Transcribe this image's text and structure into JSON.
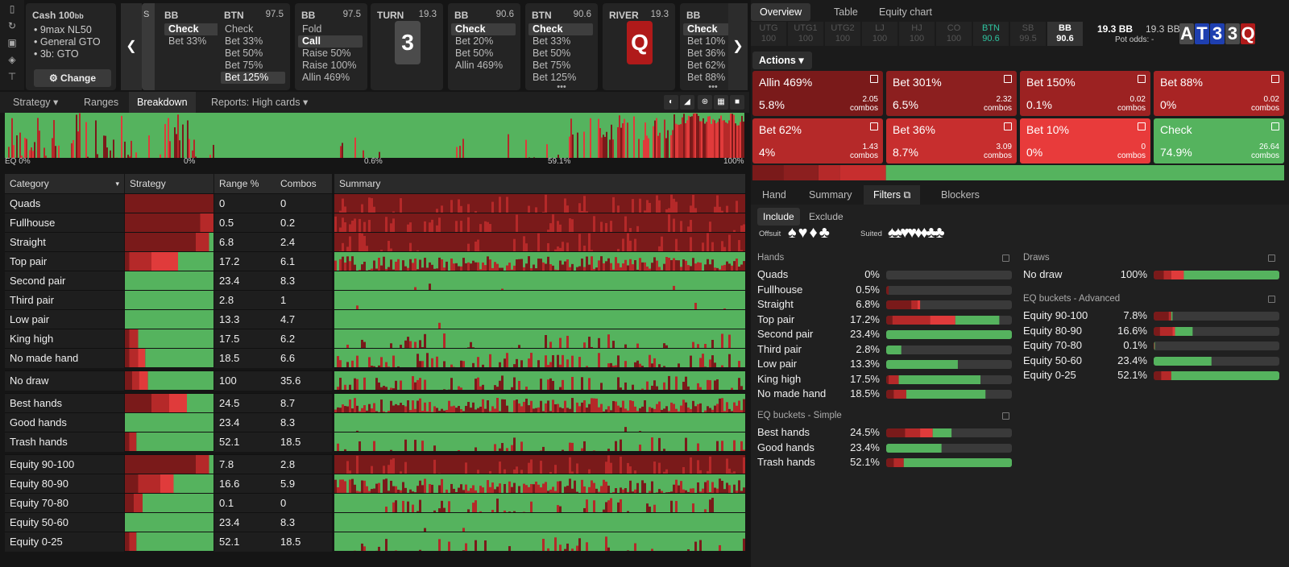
{
  "cash": {
    "title": "Cash",
    "stack": "100",
    "stack_unit": "bb",
    "line1": "9max NL50",
    "line2": "General GTO",
    "line3": "3b: GTO",
    "change": "Change"
  },
  "nav_cards": [
    {
      "pos": "BB",
      "stack": "97.5",
      "actions": [
        "Check",
        "Bet 33%"
      ],
      "sel": 0,
      "hl": -1,
      "more": false
    },
    {
      "pos": "BTN",
      "stack": "97.5",
      "actions": [
        "Check",
        "Bet 33%",
        "Bet 50%",
        "Bet 75%",
        "Bet 125%"
      ],
      "sel": -1,
      "hl": 4,
      "more": false
    },
    {
      "pos": "BB",
      "stack": "97.5",
      "actions": [
        "Fold",
        "Call",
        "Raise 50%",
        "Raise 100%",
        "Allin 469%"
      ],
      "sel": 1,
      "hl": -1,
      "more": false
    },
    {
      "pos": "BB",
      "stack": "90.6",
      "actions": [
        "Check",
        "Bet 20%",
        "Bet 50%",
        "Allin 469%"
      ],
      "sel": 0,
      "hl": -1,
      "more": false
    },
    {
      "pos": "BTN",
      "stack": "90.6",
      "actions": [
        "Check",
        "Bet 33%",
        "Bet 50%",
        "Bet 75%",
        "Bet 125%"
      ],
      "sel": 0,
      "hl": -1,
      "more": true
    },
    {
      "pos": "BB",
      "stack": "90",
      "actions": [
        "Check",
        "Bet 10%",
        "Bet 36%",
        "Bet 62%",
        "Bet 88%"
      ],
      "sel": 0,
      "hl": -1,
      "more": true
    }
  ],
  "partial_stack": "S",
  "turn": {
    "label": "TURN",
    "stack": "19.3",
    "card": "3"
  },
  "river": {
    "label": "RIVER",
    "stack": "19.3",
    "card": "Q"
  },
  "left_tabs": {
    "strategy": "Strategy",
    "ranges": "Ranges",
    "breakdown": "Breakdown",
    "reports": "Reports: High cards"
  },
  "histo_axis": {
    "eq": "EQ 0%",
    "a": "0%",
    "b": "0.6%",
    "c": "59.1%",
    "d": "100%"
  },
  "table_headers": {
    "category": "Category",
    "strategy": "Strategy",
    "range": "Range %",
    "combos": "Combos",
    "summary": "Summary"
  },
  "rows": [
    {
      "name": "Quads",
      "range": "0",
      "combos": "0",
      "s": [
        1,
        0,
        0,
        0
      ]
    },
    {
      "name": "Fullhouse",
      "range": "0.5",
      "combos": "0.2",
      "s": [
        0.85,
        0.15,
        0,
        0
      ]
    },
    {
      "name": "Straight",
      "range": "6.8",
      "combos": "2.4",
      "s": [
        0.8,
        0.15,
        0,
        0.05
      ]
    },
    {
      "name": "Top pair",
      "range": "17.2",
      "combos": "6.1",
      "s": [
        0.05,
        0.25,
        0.3,
        0.4
      ]
    },
    {
      "name": "Second pair",
      "range": "23.4",
      "combos": "8.3",
      "s": [
        0,
        0,
        0,
        1
      ]
    },
    {
      "name": "Third pair",
      "range": "2.8",
      "combos": "1",
      "s": [
        0,
        0,
        0,
        1
      ]
    },
    {
      "name": "Low pair",
      "range": "13.3",
      "combos": "4.7",
      "s": [
        0,
        0,
        0,
        1
      ]
    },
    {
      "name": "King high",
      "range": "17.5",
      "combos": "6.2",
      "s": [
        0.05,
        0.1,
        0,
        0.85
      ]
    },
    {
      "name": "No made hand",
      "range": "18.5",
      "combos": "6.6",
      "s": [
        0.05,
        0.1,
        0.08,
        0.77
      ]
    },
    {
      "name": "No draw",
      "range": "100",
      "combos": "35.6",
      "s": [
        0.08,
        0.08,
        0.1,
        0.74
      ]
    },
    {
      "name": "Best hands",
      "range": "24.5",
      "combos": "8.7",
      "s": [
        0.3,
        0.2,
        0.2,
        0.3
      ]
    },
    {
      "name": "Good hands",
      "range": "23.4",
      "combos": "8.3",
      "s": [
        0,
        0,
        0,
        1
      ]
    },
    {
      "name": "Trash hands",
      "range": "52.1",
      "combos": "18.5",
      "s": [
        0.05,
        0.08,
        0,
        0.87
      ]
    },
    {
      "name": "Equity 90-100",
      "range": "7.8",
      "combos": "2.8",
      "s": [
        0.8,
        0.15,
        0,
        0.05
      ]
    },
    {
      "name": "Equity 80-90",
      "range": "16.6",
      "combos": "5.9",
      "s": [
        0.15,
        0.25,
        0.15,
        0.45
      ]
    },
    {
      "name": "Equity 70-80",
      "range": "0.1",
      "combos": "0",
      "s": [
        0.1,
        0.1,
        0,
        0.8
      ]
    },
    {
      "name": "Equity 50-60",
      "range": "23.4",
      "combos": "8.3",
      "s": [
        0,
        0,
        0,
        1
      ]
    },
    {
      "name": "Equity 0-25",
      "range": "52.1",
      "combos": "18.5",
      "s": [
        0.05,
        0.08,
        0,
        0.87
      ]
    }
  ],
  "right_tabs": {
    "overview": "Overview",
    "table": "Table",
    "equity": "Equity chart"
  },
  "positions": [
    {
      "name": "UTG",
      "stack": "100"
    },
    {
      "name": "UTG1",
      "stack": "100"
    },
    {
      "name": "UTG2",
      "stack": "100"
    },
    {
      "name": "LJ",
      "stack": "100"
    },
    {
      "name": "HJ",
      "stack": "100"
    },
    {
      "name": "CO",
      "stack": "100"
    },
    {
      "name": "BTN",
      "stack": "90.6"
    },
    {
      "name": "SB",
      "stack": "99.5"
    },
    {
      "name": "BB",
      "stack": "90.6"
    }
  ],
  "pot": {
    "a": "19.3 BB",
    "b": "19.3 BB",
    "odds_label": "Pot odds:",
    "odds": "-"
  },
  "board": [
    "A",
    "T",
    "3",
    "3",
    "Q"
  ],
  "actions_btn": "Actions",
  "actions": [
    {
      "label": "Allin 469%",
      "pct": "5.8%",
      "combos": "2.05",
      "unit": "combos",
      "color": "#7a1a1a"
    },
    {
      "label": "Bet 301%",
      "pct": "6.5%",
      "combos": "2.32",
      "unit": "combos",
      "color": "#8c1f1f"
    },
    {
      "label": "Bet 150%",
      "pct": "0.1%",
      "combos": "0.02",
      "unit": "combos",
      "color": "#9c2222"
    },
    {
      "label": "Bet 88%",
      "pct": "0%",
      "combos": "0.02",
      "unit": "combos",
      "color": "#a82424"
    },
    {
      "label": "Bet 62%",
      "pct": "4%",
      "combos": "1.43",
      "unit": "combos",
      "color": "#b52929"
    },
    {
      "label": "Bet 36%",
      "pct": "8.7%",
      "combos": "3.09",
      "unit": "combos",
      "color": "#c72e2e"
    },
    {
      "label": "Bet 10%",
      "pct": "0%",
      "combos": "0",
      "unit": "combos",
      "color": "#e83b3b"
    },
    {
      "label": "Check",
      "pct": "74.9%",
      "combos": "26.64",
      "unit": "combos",
      "color": "#55b35e"
    }
  ],
  "bottom_tabs": {
    "hand": "Hand",
    "summary": "Summary",
    "filters": "Filters",
    "blockers": "Blockers"
  },
  "filters": {
    "include": "Include",
    "exclude": "Exclude",
    "offsuit": "Offsuit",
    "suited": "Suited"
  },
  "hands_title": "Hands",
  "hands": [
    {
      "name": "Quads",
      "pct": "0%",
      "s": [
        0,
        0,
        0,
        0
      ]
    },
    {
      "name": "Fullhouse",
      "pct": "0.5%",
      "s": [
        0.02,
        0,
        0,
        0
      ]
    },
    {
      "name": "Straight",
      "pct": "6.8%",
      "s": [
        0.2,
        0.05,
        0.02,
        0
      ]
    },
    {
      "name": "Top pair",
      "pct": "17.2%",
      "s": [
        0.05,
        0.3,
        0.2,
        0.35
      ]
    },
    {
      "name": "Second pair",
      "pct": "23.4%",
      "s": [
        0,
        0,
        0,
        1
      ]
    },
    {
      "name": "Third pair",
      "pct": "2.8%",
      "s": [
        0,
        0,
        0,
        0.12
      ]
    },
    {
      "name": "Low pair",
      "pct": "13.3%",
      "s": [
        0,
        0,
        0,
        0.57
      ]
    },
    {
      "name": "King high",
      "pct": "17.5%",
      "s": [
        0.02,
        0.08,
        0,
        0.65
      ]
    },
    {
      "name": "No made hand",
      "pct": "18.5%",
      "s": [
        0.06,
        0.1,
        0,
        0.63
      ]
    }
  ],
  "eqsimple_title": "EQ buckets - Simple",
  "eqsimple": [
    {
      "name": "Best hands",
      "pct": "24.5%",
      "s": [
        0.15,
        0.12,
        0.1,
        0.15
      ]
    },
    {
      "name": "Good hands",
      "pct": "23.4%",
      "s": [
        0,
        0,
        0,
        0.44
      ]
    },
    {
      "name": "Trash hands",
      "pct": "52.1%",
      "s": [
        0.06,
        0.08,
        0,
        0.86
      ]
    }
  ],
  "draws_title": "Draws",
  "draws": [
    {
      "name": "No draw",
      "pct": "100%",
      "s": [
        0.08,
        0.06,
        0.1,
        0.76
      ]
    }
  ],
  "eqadv_title": "EQ buckets - Advanced",
  "eqadv": [
    {
      "name": "Equity 90-100",
      "pct": "7.8%",
      "s": [
        0.12,
        0.02,
        0,
        0.01
      ]
    },
    {
      "name": "Equity 80-90",
      "pct": "16.6%",
      "s": [
        0.05,
        0.1,
        0.02,
        0.14
      ]
    },
    {
      "name": "Equity 70-80",
      "pct": "0.1%",
      "s": [
        0,
        0.005,
        0,
        0.005
      ]
    },
    {
      "name": "Equity 50-60",
      "pct": "23.4%",
      "s": [
        0,
        0,
        0,
        0.46
      ]
    },
    {
      "name": "Equity 0-25",
      "pct": "52.1%",
      "s": [
        0.06,
        0.08,
        0,
        0.86
      ]
    }
  ],
  "colors": {
    "dark": "#7a1a1a",
    "mid": "#b52929",
    "bright": "#e03b3b",
    "check": "#55b35e"
  }
}
